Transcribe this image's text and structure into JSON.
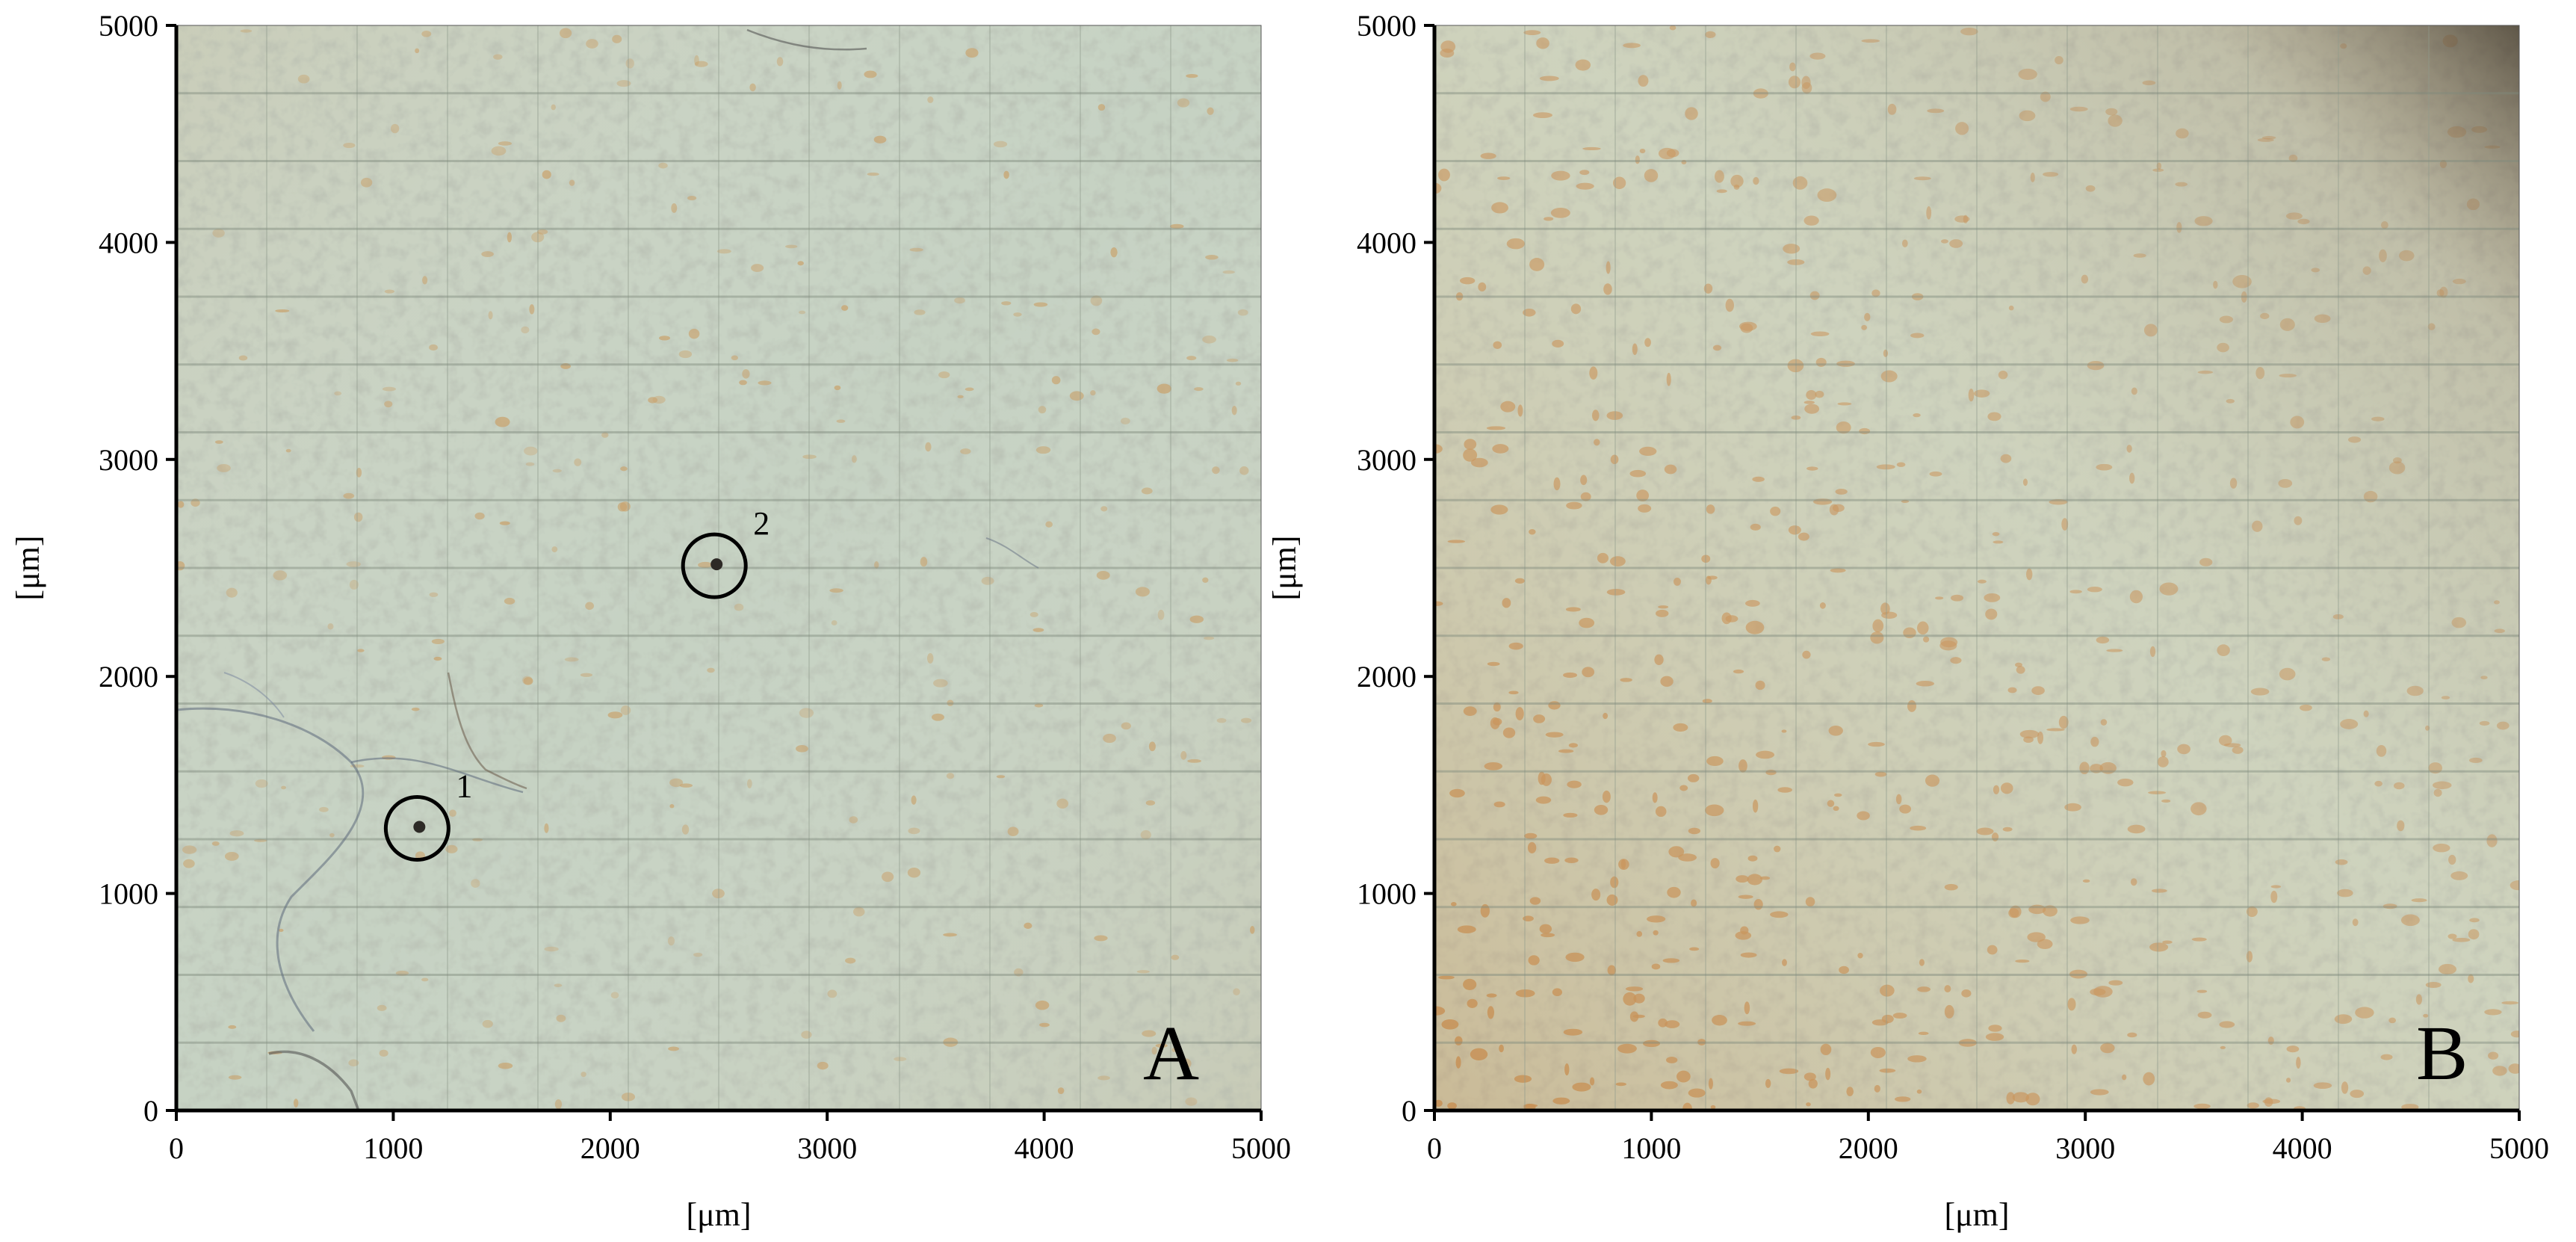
{
  "panels": [
    {
      "letter": "A",
      "xlabel": "[μm]",
      "ylabel": "[μm]",
      "x_ticks": [
        "0",
        "1000",
        "2000",
        "3000",
        "4000",
        "5000"
      ],
      "y_ticks": [
        "0",
        "1000",
        "2000",
        "3000",
        "4000",
        "5000"
      ],
      "range_um": [
        0,
        5000
      ],
      "tile_grid": {
        "cols": 12,
        "rows": 16
      },
      "base_color": "#c6d2c3",
      "spot_color": "#c9a36e",
      "markers": [
        {
          "label": "1",
          "x_um": 1110,
          "y_um": 1300
        },
        {
          "label": "2",
          "x_um": 2480,
          "y_um": 2510
        }
      ]
    },
    {
      "letter": "B",
      "xlabel": "[μm]",
      "ylabel": "[μm]",
      "x_ticks": [
        "0",
        "1000",
        "2000",
        "3000",
        "4000",
        "5000"
      ],
      "y_ticks": [
        "0",
        "1000",
        "2000",
        "3000",
        "4000",
        "5000"
      ],
      "range_um": [
        0,
        5000
      ],
      "tile_grid": {
        "cols": 12,
        "rows": 16
      },
      "base_color": "#cdd4c0",
      "spot_color": "#c89258",
      "markers": []
    }
  ]
}
